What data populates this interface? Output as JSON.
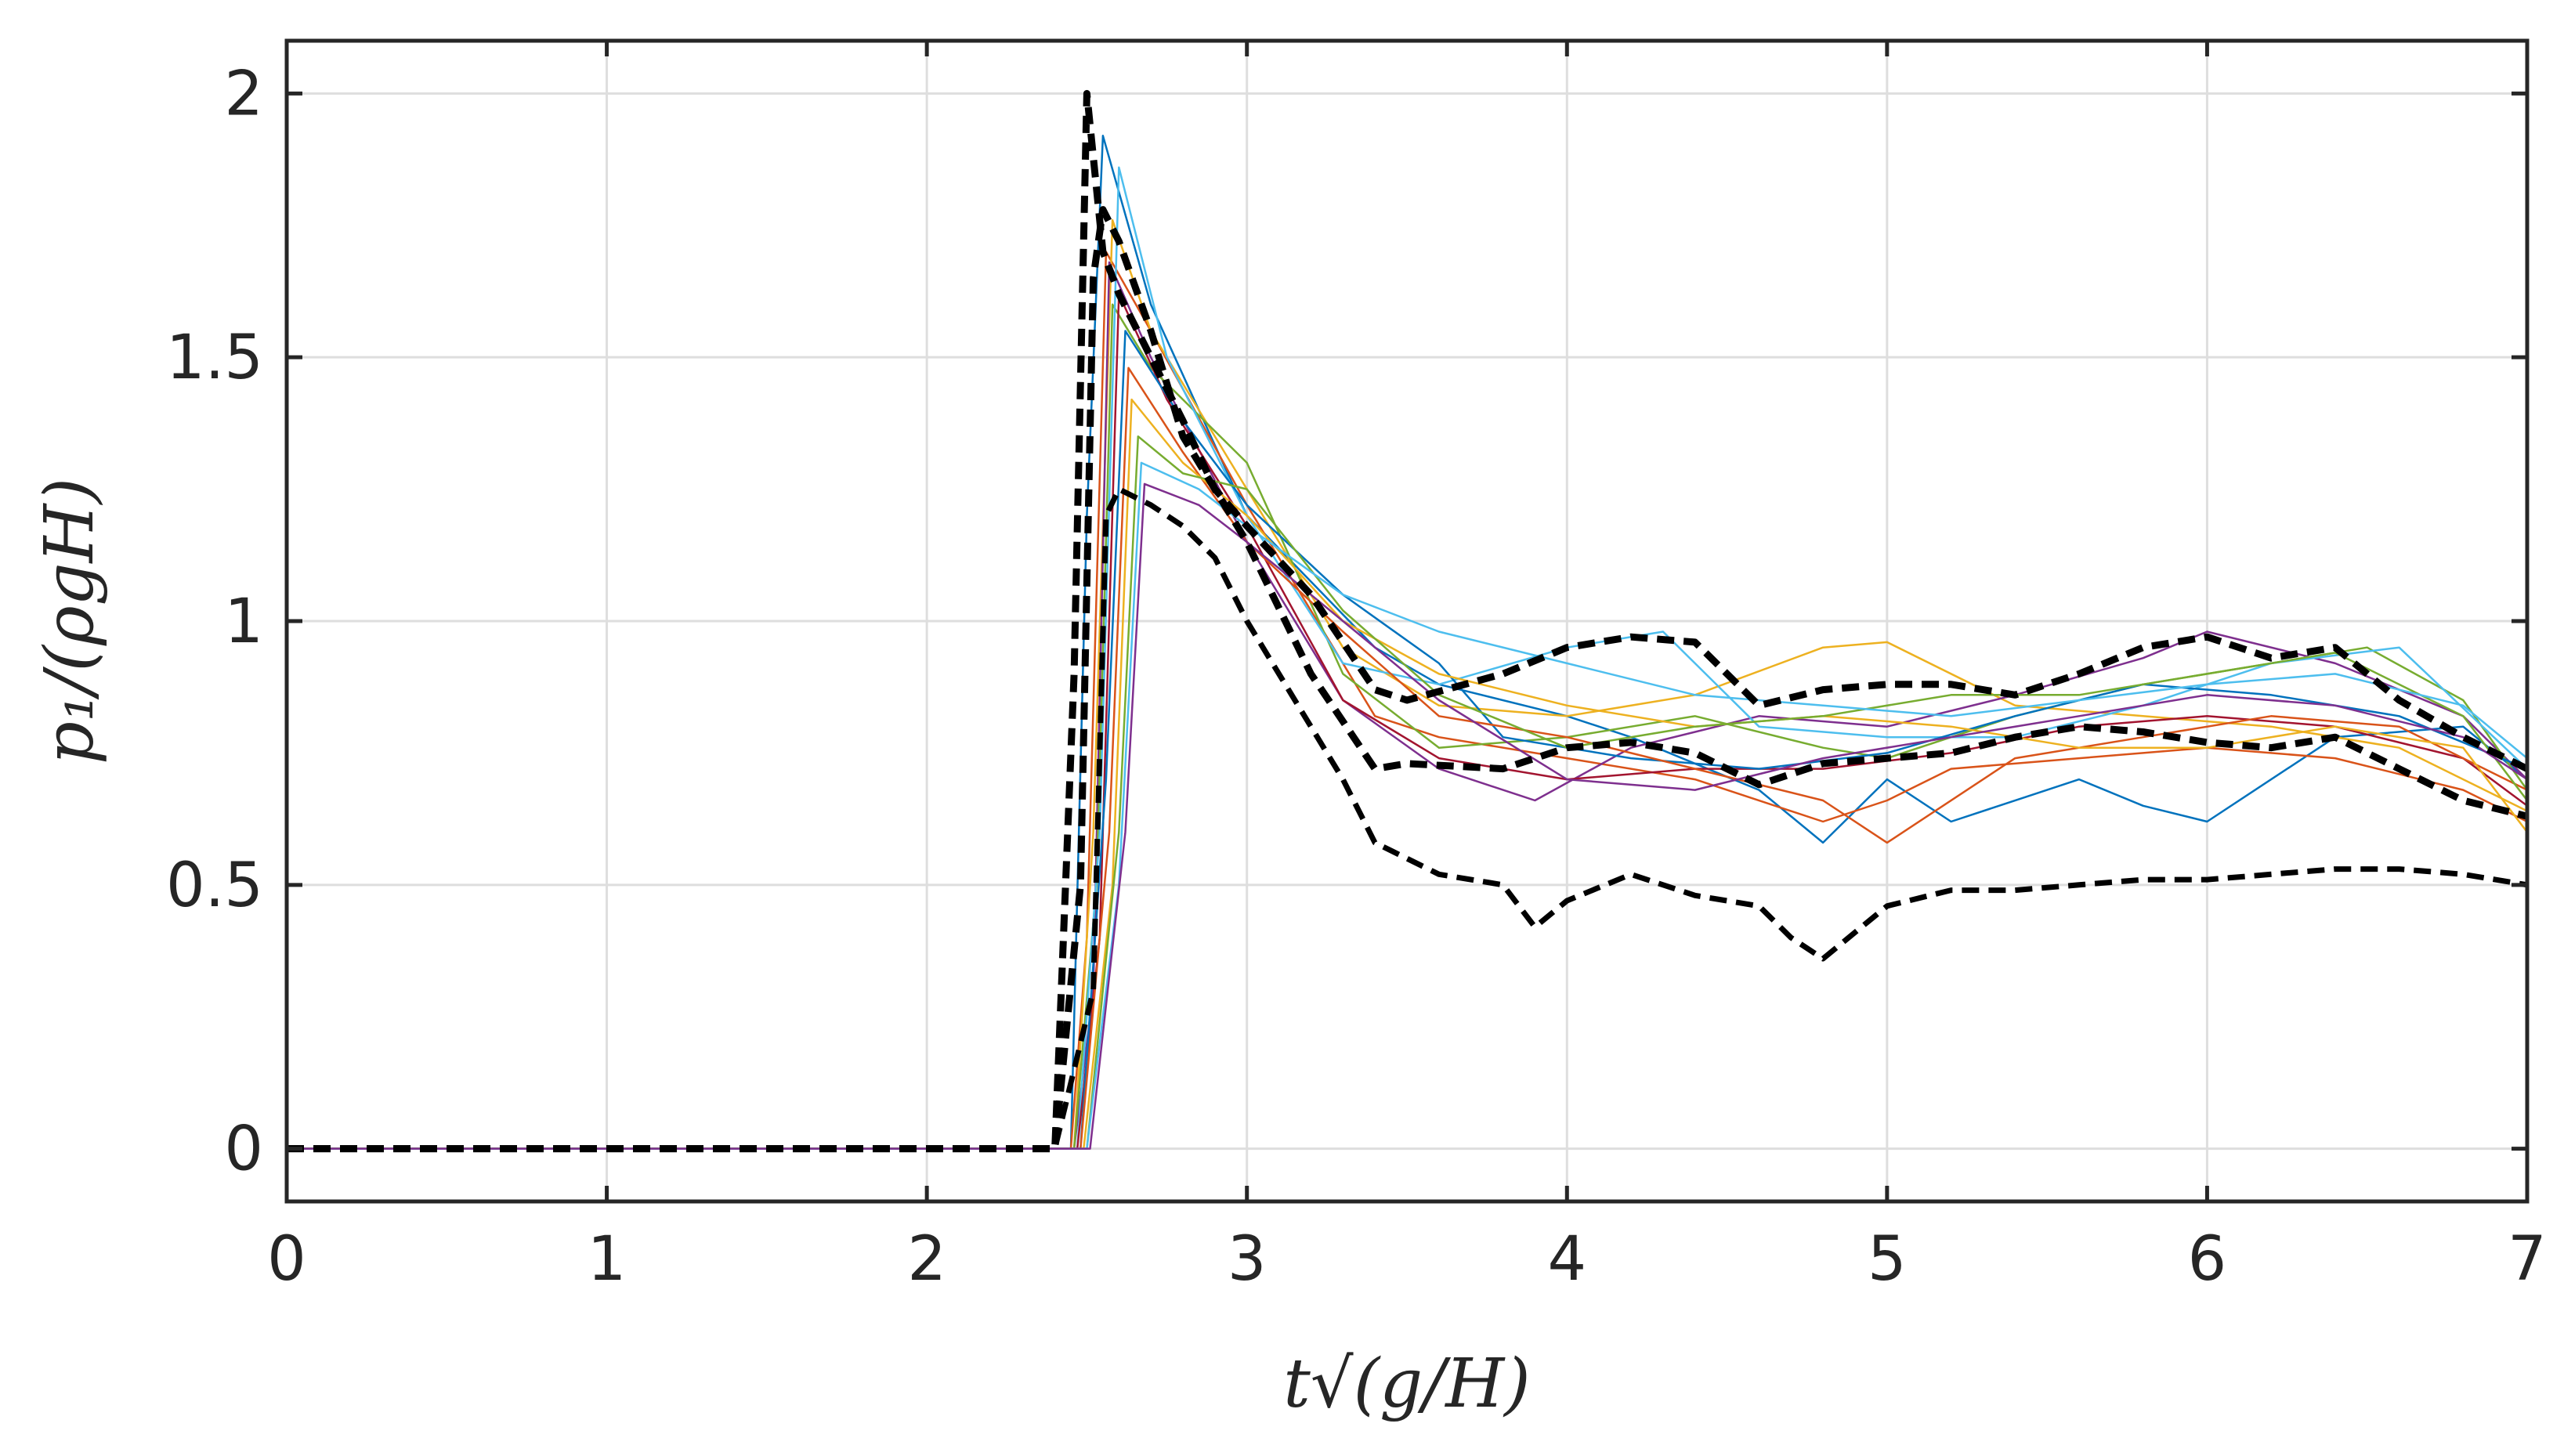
{
  "chart_data": {
    "type": "line",
    "title": "",
    "xlabel": "t√(g/H)",
    "ylabel": "p₁/(ρgH)",
    "xlim": [
      0,
      7
    ],
    "ylim": [
      -0.1,
      2.1
    ],
    "x_ticks": [
      0,
      1,
      2,
      3,
      4,
      5,
      6,
      7
    ],
    "y_ticks": [
      0,
      0.5,
      1,
      1.5,
      2
    ],
    "x_tick_labels": [
      "0",
      "1",
      "2",
      "3",
      "4",
      "5",
      "6",
      "7"
    ],
    "y_tick_labels": [
      "0",
      "0.5",
      "1",
      "1.5",
      "2"
    ],
    "grid": true,
    "legend": "none",
    "series": [
      {
        "style": "dashed",
        "color": "#000000",
        "emphasis": "thick",
        "x": [
          0,
          0.5,
          1,
          1.5,
          2,
          2.4,
          2.46,
          2.5,
          2.55,
          2.6,
          2.7,
          2.8,
          2.9,
          3.0,
          3.2,
          3.4,
          3.5,
          3.8,
          4.0,
          4.2,
          4.4,
          4.6,
          4.8,
          5.0,
          5.2,
          5.4,
          5.6,
          5.8,
          6.0,
          6.2,
          6.4,
          6.6,
          6.8,
          7.0
        ],
        "y": [
          0,
          0,
          0,
          0,
          0,
          0,
          0.9,
          2.0,
          1.7,
          1.62,
          1.5,
          1.38,
          1.25,
          1.18,
          1.05,
          0.87,
          0.85,
          0.9,
          0.95,
          0.97,
          0.96,
          0.84,
          0.87,
          0.88,
          0.88,
          0.86,
          0.9,
          0.95,
          0.97,
          0.93,
          0.95,
          0.85,
          0.78,
          0.72
        ]
      },
      {
        "style": "dashed",
        "color": "#000000",
        "emphasis": "thick",
        "x": [
          0,
          1,
          2,
          2.4,
          2.48,
          2.52,
          2.55,
          2.6,
          2.7,
          2.8,
          3.0,
          3.2,
          3.4,
          3.5,
          3.8,
          4.0,
          4.2,
          4.4,
          4.6,
          4.8,
          5.0,
          5.2,
          5.4,
          5.6,
          5.8,
          6.0,
          6.2,
          6.4,
          6.6,
          6.8,
          7.0
        ],
        "y": [
          0,
          0,
          0,
          0,
          0.5,
          1.65,
          1.78,
          1.72,
          1.55,
          1.35,
          1.15,
          0.9,
          0.72,
          0.73,
          0.72,
          0.76,
          0.77,
          0.75,
          0.69,
          0.73,
          0.74,
          0.75,
          0.78,
          0.8,
          0.79,
          0.77,
          0.76,
          0.78,
          0.72,
          0.66,
          0.63
        ]
      },
      {
        "style": "dashed",
        "color": "#000000",
        "emphasis": "normal",
        "x": [
          0,
          1,
          2,
          2.4,
          2.52,
          2.56,
          2.6,
          2.7,
          2.8,
          2.9,
          3.0,
          3.2,
          3.3,
          3.4,
          3.6,
          3.8,
          3.9,
          4.0,
          4.2,
          4.4,
          4.6,
          4.7,
          4.8,
          5.0,
          5.2,
          5.4,
          5.6,
          5.8,
          6.0,
          6.2,
          6.4,
          6.6,
          6.8,
          7.0
        ],
        "y": [
          0,
          0,
          0,
          0,
          0.3,
          1.2,
          1.25,
          1.22,
          1.18,
          1.12,
          1.0,
          0.8,
          0.7,
          0.58,
          0.52,
          0.5,
          0.42,
          0.47,
          0.52,
          0.48,
          0.46,
          0.4,
          0.36,
          0.46,
          0.49,
          0.49,
          0.5,
          0.51,
          0.51,
          0.52,
          0.53,
          0.53,
          0.52,
          0.5
        ]
      },
      {
        "style": "solid",
        "color": "#0072BD",
        "x": [
          0,
          2.45,
          2.5,
          2.55,
          2.7,
          3.0,
          3.4,
          3.6,
          4.0,
          4.2,
          4.6,
          4.8,
          5.0,
          5.2,
          5.6,
          5.8,
          6.0,
          6.4,
          6.8,
          7.0
        ],
        "y": [
          0,
          0,
          1.2,
          1.92,
          1.6,
          1.2,
          0.95,
          0.88,
          0.82,
          0.78,
          0.68,
          0.58,
          0.7,
          0.62,
          0.7,
          0.65,
          0.62,
          0.78,
          0.8,
          0.7
        ]
      },
      {
        "style": "solid",
        "color": "#D95319",
        "x": [
          0,
          2.45,
          2.5,
          2.56,
          2.7,
          3.0,
          3.4,
          3.6,
          4.0,
          4.4,
          4.8,
          5.0,
          5.2,
          5.6,
          6.0,
          6.4,
          6.8,
          7.0
        ],
        "y": [
          0,
          0,
          0.4,
          1.7,
          1.55,
          1.22,
          0.82,
          0.78,
          0.74,
          0.7,
          0.62,
          0.66,
          0.72,
          0.74,
          0.76,
          0.74,
          0.68,
          0.62
        ]
      },
      {
        "style": "solid",
        "color": "#EDB120",
        "x": [
          0,
          2.46,
          2.52,
          2.58,
          2.7,
          3.0,
          3.3,
          3.6,
          4.0,
          4.4,
          4.8,
          5.0,
          5.4,
          5.8,
          6.2,
          6.6,
          7.0
        ],
        "y": [
          0,
          0,
          0.6,
          1.76,
          1.55,
          1.25,
          0.95,
          0.84,
          0.82,
          0.86,
          0.95,
          0.96,
          0.84,
          0.82,
          0.8,
          0.76,
          0.64
        ]
      },
      {
        "style": "solid",
        "color": "#7E2F8E",
        "x": [
          0,
          2.46,
          2.52,
          2.57,
          2.7,
          3.0,
          3.3,
          3.6,
          3.9,
          4.2,
          4.6,
          5.0,
          5.4,
          5.8,
          6.0,
          6.4,
          6.8,
          7.0
        ],
        "y": [
          0,
          0,
          0.3,
          1.68,
          1.5,
          1.15,
          0.85,
          0.72,
          0.66,
          0.76,
          0.82,
          0.8,
          0.86,
          0.93,
          0.98,
          0.92,
          0.82,
          0.7
        ]
      },
      {
        "style": "solid",
        "color": "#77AC30",
        "x": [
          0,
          2.46,
          2.53,
          2.58,
          2.7,
          3.0,
          3.3,
          3.6,
          4.0,
          4.4,
          4.8,
          5.0,
          5.4,
          5.8,
          6.2,
          6.5,
          6.8,
          7.0
        ],
        "y": [
          0,
          0,
          0.5,
          1.6,
          1.48,
          1.3,
          0.9,
          0.76,
          0.78,
          0.82,
          0.76,
          0.74,
          0.82,
          0.88,
          0.92,
          0.95,
          0.85,
          0.68
        ]
      },
      {
        "style": "solid",
        "color": "#4DBEEE",
        "x": [
          0,
          2.47,
          2.54,
          2.6,
          2.75,
          3.0,
          3.3,
          3.6,
          4.0,
          4.3,
          4.6,
          5.0,
          5.4,
          5.8,
          6.2,
          6.6,
          7.0
        ],
        "y": [
          0,
          0,
          0.6,
          1.86,
          1.5,
          1.2,
          0.92,
          0.88,
          0.95,
          0.98,
          0.8,
          0.78,
          0.78,
          0.84,
          0.92,
          0.95,
          0.72
        ]
      },
      {
        "style": "solid",
        "color": "#A2142F",
        "x": [
          0,
          2.47,
          2.54,
          2.6,
          2.75,
          3.0,
          3.3,
          3.6,
          4.0,
          4.4,
          4.8,
          5.2,
          5.6,
          6.0,
          6.4,
          6.8,
          7.0
        ],
        "y": [
          0,
          0,
          0.4,
          1.62,
          1.42,
          1.18,
          0.85,
          0.74,
          0.7,
          0.72,
          0.72,
          0.75,
          0.8,
          0.82,
          0.8,
          0.74,
          0.65
        ]
      },
      {
        "style": "solid",
        "color": "#0072BD",
        "x": [
          0,
          2.48,
          2.56,
          2.62,
          2.8,
          3.0,
          3.3,
          3.6,
          3.8,
          4.2,
          4.6,
          5.0,
          5.4,
          5.8,
          6.2,
          6.6,
          7.0
        ],
        "y": [
          0,
          0,
          0.7,
          1.55,
          1.38,
          1.22,
          1.05,
          0.92,
          0.78,
          0.74,
          0.72,
          0.75,
          0.82,
          0.88,
          0.86,
          0.82,
          0.72
        ]
      },
      {
        "style": "solid",
        "color": "#D95319",
        "x": [
          0,
          2.48,
          2.57,
          2.63,
          2.8,
          3.0,
          3.3,
          3.6,
          4.0,
          4.4,
          4.8,
          5.0,
          5.4,
          5.8,
          6.2,
          6.6,
          7.0
        ],
        "y": [
          0,
          0,
          0.6,
          1.48,
          1.32,
          1.15,
          0.98,
          0.82,
          0.78,
          0.72,
          0.66,
          0.58,
          0.74,
          0.78,
          0.82,
          0.8,
          0.68
        ]
      },
      {
        "style": "solid",
        "color": "#EDB120",
        "x": [
          0,
          2.49,
          2.58,
          2.64,
          2.8,
          3.0,
          3.3,
          3.6,
          4.0,
          4.4,
          4.8,
          5.2,
          5.6,
          6.0,
          6.4,
          6.8,
          7.0
        ],
        "y": [
          0,
          0,
          0.5,
          1.42,
          1.3,
          1.2,
          1.0,
          0.9,
          0.84,
          0.8,
          0.82,
          0.8,
          0.76,
          0.76,
          0.8,
          0.76,
          0.6
        ]
      },
      {
        "style": "solid",
        "color": "#77AC30",
        "x": [
          0,
          2.5,
          2.6,
          2.66,
          2.8,
          3.0,
          3.3,
          3.6,
          4.0,
          4.4,
          4.8,
          5.2,
          5.6,
          6.0,
          6.4,
          6.8,
          7.0
        ],
        "y": [
          0,
          0,
          0.6,
          1.35,
          1.28,
          1.25,
          1.02,
          0.86,
          0.76,
          0.8,
          0.82,
          0.86,
          0.86,
          0.9,
          0.94,
          0.82,
          0.66
        ]
      },
      {
        "style": "solid",
        "color": "#4DBEEE",
        "x": [
          0,
          2.5,
          2.6,
          2.67,
          2.85,
          3.0,
          3.3,
          3.6,
          4.0,
          4.4,
          4.8,
          5.2,
          5.6,
          6.0,
          6.4,
          6.8,
          7.0
        ],
        "y": [
          0,
          0,
          0.5,
          1.3,
          1.25,
          1.18,
          1.05,
          0.98,
          0.92,
          0.86,
          0.84,
          0.82,
          0.85,
          0.88,
          0.9,
          0.84,
          0.74
        ]
      },
      {
        "style": "solid",
        "color": "#7E2F8E",
        "x": [
          0,
          2.51,
          2.62,
          2.68,
          2.85,
          3.0,
          3.3,
          3.6,
          4.0,
          4.4,
          4.8,
          5.2,
          5.6,
          6.0,
          6.4,
          6.8,
          7.0
        ],
        "y": [
          0,
          0,
          0.6,
          1.26,
          1.22,
          1.15,
          1.0,
          0.85,
          0.7,
          0.68,
          0.74,
          0.78,
          0.82,
          0.86,
          0.84,
          0.78,
          0.7
        ]
      }
    ]
  }
}
